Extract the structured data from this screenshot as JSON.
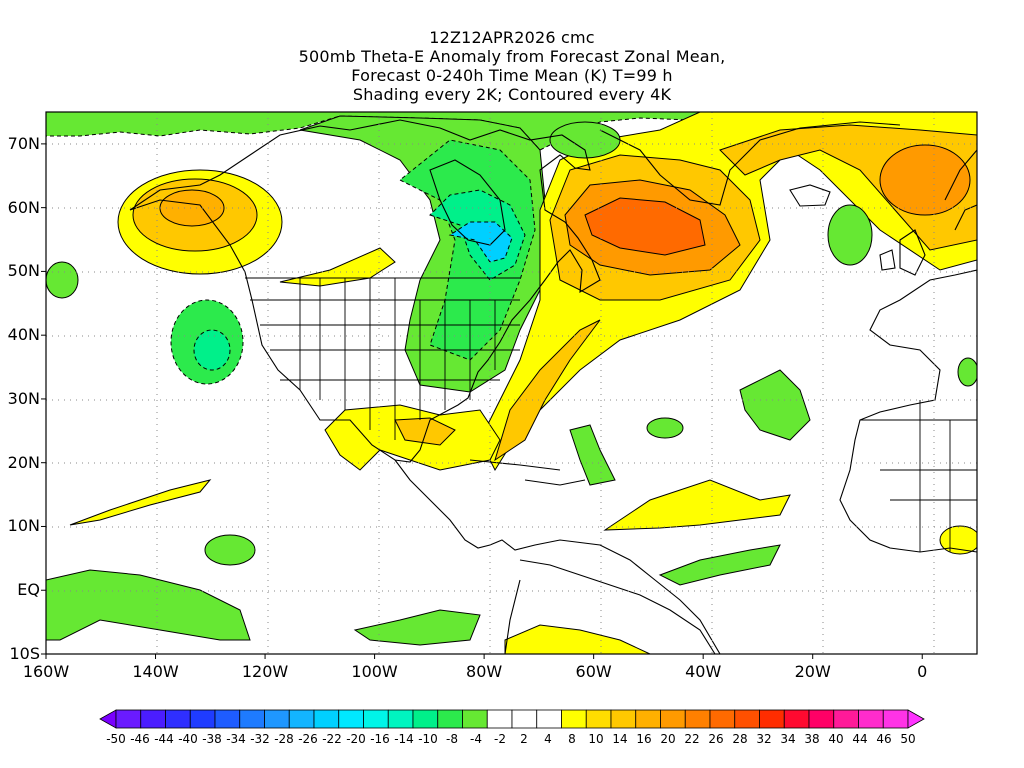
{
  "titles": [
    "12Z12APR2026 cmc",
    "500mb Theta-E Anomaly from Forecast Zonal Mean,",
    "Forecast 0-240h Time Mean (K) T=99 h",
    "Shading every 2K; Contoured every 4K"
  ],
  "map": {
    "lon_range": [
      -160,
      10
    ],
    "lat_range": [
      -10,
      75
    ],
    "lat_ticks": [
      {
        "lat": 70,
        "label": "70N"
      },
      {
        "lat": 60,
        "label": "60N"
      },
      {
        "lat": 50,
        "label": "50N"
      },
      {
        "lat": 40,
        "label": "40N"
      },
      {
        "lat": 30,
        "label": "30N"
      },
      {
        "lat": 20,
        "label": "20N"
      },
      {
        "lat": 10,
        "label": "10N"
      },
      {
        "lat": 0,
        "label": "EQ"
      },
      {
        "lat": -10,
        "label": "10S"
      }
    ],
    "lon_ticks": [
      {
        "lon": -160,
        "label": "160W"
      },
      {
        "lon": -140,
        "label": "140W"
      },
      {
        "lon": -120,
        "label": "120W"
      },
      {
        "lon": -100,
        "label": "100W"
      },
      {
        "lon": -80,
        "label": "80W"
      },
      {
        "lon": -60,
        "label": "60W"
      },
      {
        "lon": -40,
        "label": "40W"
      },
      {
        "lon": -20,
        "label": "20W"
      },
      {
        "lon": 0,
        "label": "0"
      }
    ],
    "regions": [
      {
        "name": "gulf-of-alaska-warm",
        "sign": "warm",
        "center_lon": -133,
        "center_lat": 58,
        "peak_k": 14
      },
      {
        "name": "north-atlantic-greenland-warm",
        "sign": "warm",
        "center_lon": -48,
        "center_lat": 58,
        "peak_k": 24
      },
      {
        "name": "norwegian-sea-warm",
        "sign": "warm",
        "center_lon": -3,
        "center_lat": 62,
        "peak_k": 16
      },
      {
        "name": "hudson-bay-great-lakes-cold",
        "sign": "cold",
        "center_lon": -78,
        "center_lat": 52,
        "peak_k": -24
      },
      {
        "name": "eastern-pacific-cold",
        "sign": "cold",
        "center_lon": -128,
        "center_lat": 37,
        "peak_k": -16
      },
      {
        "name": "arctic-canada-cold",
        "sign": "cold",
        "center_lon": -110,
        "center_lat": 72,
        "peak_k": -10
      },
      {
        "name": "subtropical-atlantic-warm",
        "sign": "warm",
        "center_lon": -42,
        "center_lat": 13,
        "peak_k": 8
      },
      {
        "name": "gulf-caribbean-warm",
        "sign": "warm",
        "center_lon": -85,
        "center_lat": 24,
        "peak_k": 8
      }
    ]
  },
  "colorbar": {
    "levels": [
      "-50",
      "-46",
      "-44",
      "-40",
      "-38",
      "-34",
      "-32",
      "-28",
      "-26",
      "-22",
      "-20",
      "-16",
      "-14",
      "-10",
      "-8",
      "-4",
      "-2",
      "2",
      "4",
      "8",
      "10",
      "14",
      "16",
      "20",
      "22",
      "26",
      "28",
      "32",
      "34",
      "38",
      "40",
      "44",
      "46",
      "50"
    ],
    "colors": [
      "#7a00ff",
      "#6a1bff",
      "#4b1dff",
      "#2f2fff",
      "#1f3cff",
      "#1e5cff",
      "#1e7bff",
      "#1f97ff",
      "#13b5ff",
      "#00d0ff",
      "#00e8ff",
      "#00f5e8",
      "#00f5c0",
      "#00f08a",
      "#2cea4c",
      "#66e833",
      "#ffffff",
      "#ffffff",
      "#ffffff",
      "#ffff00",
      "#ffdd00",
      "#ffc800",
      "#ffb000",
      "#ff9a00",
      "#ff8000",
      "#ff6a00",
      "#ff5000",
      "#ff2d00",
      "#ff0a30",
      "#ff0066",
      "#ff1a99",
      "#ff2ccc",
      "#ff33e6",
      "#ff33ff"
    ]
  }
}
